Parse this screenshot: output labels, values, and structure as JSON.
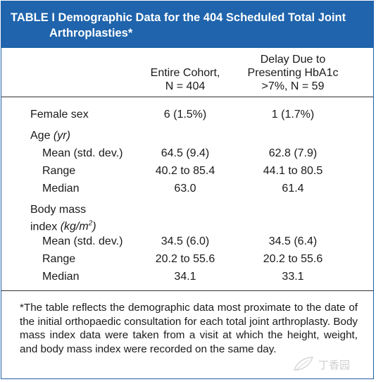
{
  "table": {
    "title_line1": "TABLE I Demographic Data for the 404 Scheduled Total Joint",
    "title_line2": "Arthroplasties*",
    "col_header_2": [
      "Entire Cohort,",
      "N = 404"
    ],
    "col_header_3": [
      "Delay Due to",
      "Presenting HbA1c",
      ">7%, N = 59"
    ],
    "rows": [
      {
        "label": "Female sex",
        "c2": "6 (1.5%)",
        "c3": "1 (1.7%)"
      },
      {
        "label": "Age",
        "unit": "(yr)"
      },
      {
        "label": "Mean (std. dev.)",
        "c2": "64.5 (9.4)",
        "c3": "62.8 (7.9)"
      },
      {
        "label": "Range",
        "c2": "40.2 to 85.4",
        "c3": "44.1 to 80.5"
      },
      {
        "label": "Median",
        "c2": "63.0",
        "c3": "61.4"
      },
      {
        "label_line1": "Body mass",
        "label_line2": "index",
        "unit": "(kg/m",
        "unit_sup": "2",
        "unit_close": ")"
      },
      {
        "label": "Mean (std. dev.)",
        "c2": "34.5 (6.0)",
        "c3": "34.5 (6.4)"
      },
      {
        "label": "Range",
        "c2": "20.2 to 55.6",
        "c3": "20.2 to 55.6"
      },
      {
        "label": "Median",
        "c2": "34.1",
        "c3": "33.1"
      }
    ],
    "footnote": "*The table reflects the demographic data most proximate to the date of the initial orthopaedic consultation for each total joint arthroplasty. Body mass index data were taken from a visit at which the height, weight, and body mass index were recorded on the same day."
  },
  "watermark": {
    "text": "丁香园"
  },
  "colors": {
    "title_bg": "#1f64ac",
    "title_text": "#ffffff",
    "border": "#1f5fa6"
  }
}
